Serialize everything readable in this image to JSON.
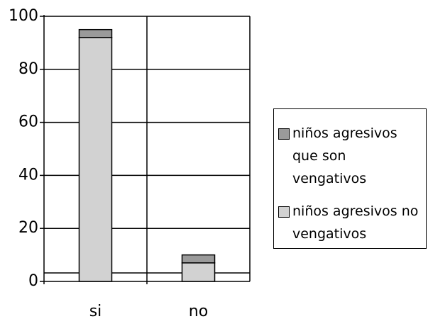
{
  "chart_data": {
    "type": "bar",
    "stacked": true,
    "categories": [
      "si",
      "no"
    ],
    "series": [
      {
        "name": "niños agresivos no vengativos",
        "color": "#d2d2d2",
        "values": [
          92,
          7
        ]
      },
      {
        "name": "niños agresivos que son vengativos",
        "color": "#9a9a9a",
        "values": [
          3,
          3
        ]
      }
    ],
    "legend_order": [
      1,
      0
    ],
    "ylim": [
      0,
      100
    ],
    "yticks": [
      0,
      20,
      40,
      60,
      80,
      100
    ],
    "grid": true
  }
}
